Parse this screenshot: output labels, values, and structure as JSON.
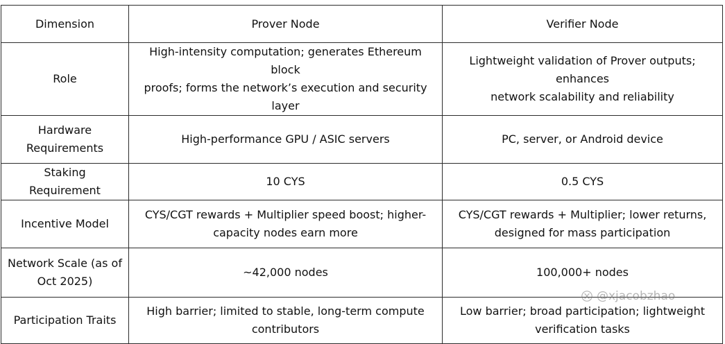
{
  "table": {
    "headers": [
      "Dimension",
      "Prover Node",
      "Verifier Node"
    ],
    "rows": [
      {
        "dimension": [
          "Role"
        ],
        "prover": [
          "High-intensity computation; generates Ethereum block",
          "proofs; forms the network’s execution and security layer"
        ],
        "verifier": [
          "Lightweight validation of Prover outputs; enhances",
          "network scalability and reliability"
        ]
      },
      {
        "dimension": [
          "Hardware",
          "Requirements"
        ],
        "prover": [
          "High-performance GPU / ASIC servers"
        ],
        "verifier": [
          "PC, server, or Android device"
        ]
      },
      {
        "dimension": [
          "Staking Requirement"
        ],
        "prover": [
          "10 CYS"
        ],
        "verifier": [
          "0.5 CYS"
        ]
      },
      {
        "dimension": [
          "Incentive Model"
        ],
        "prover": [
          "CYS/CGT rewards + Multiplier speed boost; higher-",
          "capacity nodes earn more"
        ],
        "verifier": [
          "CYS/CGT rewards + Multiplier; lower returns,",
          "designed for mass participation"
        ]
      },
      {
        "dimension": [
          "Network Scale (as of",
          "Oct 2025)"
        ],
        "prover": [
          "~42,000 nodes"
        ],
        "verifier": [
          "100,000+ nodes"
        ]
      },
      {
        "dimension": [
          "Participation Traits"
        ],
        "prover": [
          "High barrier; limited to stable, long-term compute",
          "contributors"
        ],
        "verifier": [
          "Low barrier; broad participation; lightweight",
          "verification tasks"
        ]
      }
    ]
  },
  "watermark": {
    "text": "@xjacobzhao",
    "icon": "x-logo-icon"
  }
}
